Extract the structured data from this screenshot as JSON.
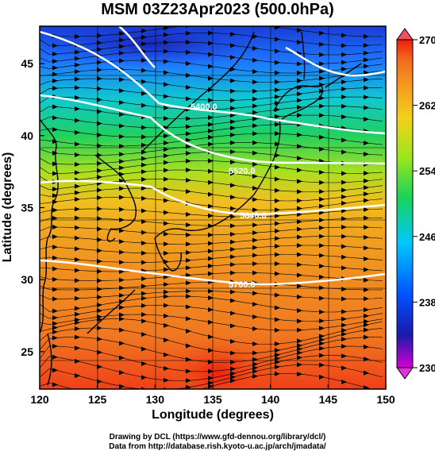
{
  "title": "MSM 03Z23Apr2023 (500.0hPa)",
  "xlabel": "Longitude (degrees)",
  "ylabel": "Latitude  (degrees)",
  "credits": {
    "line1": "Drawing by DCL (https://www.gfd-dennou.org/library/dcl/)",
    "line2": "Data from http://database.rish.kyoto-u.ac.jp/arch/jmadata/"
  },
  "map": {
    "lon_range": [
      120,
      150
    ],
    "lat_range": [
      22.4,
      47.6
    ],
    "x_ticks": [
      120,
      125,
      130,
      135,
      140,
      145,
      150
    ],
    "y_ticks": [
      25,
      30,
      35,
      40,
      45
    ],
    "grid": true
  },
  "colorbar": {
    "range": [
      230,
      270
    ],
    "ticks": [
      230,
      238,
      246,
      254,
      262,
      270
    ],
    "colors": [
      "#d400d4",
      "#1a1aa8",
      "#0050ff",
      "#00c8ff",
      "#19d35a",
      "#9be61e",
      "#f2d21a",
      "#f59a1e",
      "#f06a1e",
      "#f01e0a"
    ]
  },
  "contours": [
    {
      "label": "5400.0"
    },
    {
      "label": "5520.0"
    },
    {
      "label": "5640.0"
    },
    {
      "label": "5760.0"
    }
  ]
}
